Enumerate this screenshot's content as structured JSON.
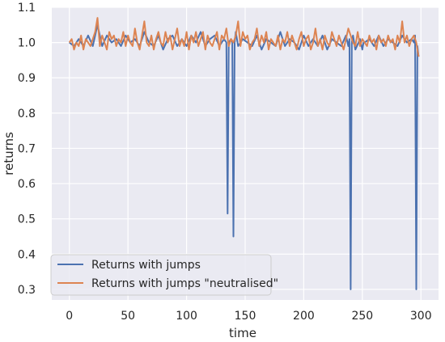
{
  "chart_data": {
    "type": "line",
    "title": "",
    "xlabel": "time",
    "ylabel": "returns",
    "xlim": [
      -15,
      315
    ],
    "ylim": [
      0.27,
      1.1
    ],
    "xticks": [
      0,
      50,
      100,
      150,
      200,
      250,
      300
    ],
    "yticks": [
      0.3,
      0.4,
      0.5,
      0.6,
      0.7,
      0.8,
      0.9,
      1.0,
      1.1
    ],
    "xtick_labels": [
      "0",
      "50",
      "100",
      "150",
      "200",
      "250",
      "300"
    ],
    "ytick_labels": [
      "0.3",
      "0.4",
      "0.5",
      "0.6",
      "0.7",
      "0.8",
      "0.9",
      "1.0",
      "1.1"
    ],
    "grid": true,
    "legend_position": "lower-left",
    "colors": {
      "background": "#eaeaf2",
      "grid": "#ffffff",
      "text": "#262626"
    },
    "series": [
      {
        "name": "Returns with jumps",
        "color": "#4c72b0",
        "x": [
          0,
          4,
          8,
          12,
          16,
          20,
          24,
          28,
          32,
          36,
          40,
          44,
          48,
          52,
          56,
          60,
          64,
          68,
          72,
          76,
          80,
          84,
          88,
          92,
          96,
          100,
          104,
          108,
          112,
          116,
          120,
          124,
          128,
          132,
          134,
          135,
          136,
          138,
          139,
          140,
          141,
          142,
          144,
          148,
          152,
          156,
          160,
          164,
          168,
          172,
          176,
          180,
          184,
          188,
          192,
          196,
          200,
          204,
          208,
          212,
          216,
          220,
          224,
          228,
          232,
          236,
          238,
          239,
          240,
          241,
          242,
          244,
          248,
          250,
          251,
          252,
          256,
          260,
          264,
          268,
          272,
          276,
          280,
          284,
          288,
          292,
          294,
          295,
          296,
          297,
          298
        ],
        "y": [
          1.0,
          0.99,
          1.01,
          0.99,
          1.02,
          0.99,
          1.05,
          0.99,
          1.02,
          1.0,
          1.01,
          0.99,
          1.02,
          1.0,
          1.01,
          0.99,
          1.03,
          1.0,
          0.99,
          1.02,
          0.98,
          1.01,
          1.02,
          0.99,
          1.01,
          0.99,
          1.02,
          1.0,
          1.03,
          0.99,
          1.01,
          1.02,
          0.99,
          1.01,
          1.0,
          0.515,
          1.0,
          1.01,
          1.0,
          0.45,
          1.0,
          1.03,
          0.99,
          1.01,
          1.0,
          0.99,
          1.02,
          0.98,
          1.01,
          1.0,
          0.99,
          1.03,
          0.99,
          1.01,
          1.0,
          0.98,
          1.02,
          0.99,
          1.01,
          0.99,
          1.02,
          0.98,
          1.01,
          1.0,
          0.99,
          1.02,
          0.99,
          1.01,
          0.3,
          1.0,
          1.02,
          0.98,
          1.01,
          0.98,
          1.0,
          1.0,
          1.01,
          0.99,
          1.02,
          0.99,
          1.01,
          1.0,
          0.99,
          1.02,
          1.0,
          1.01,
          1.0,
          1.02,
          0.3,
          0.99,
          0.96
        ]
      },
      {
        "name": "Returns with jumps \"neutralised\"",
        "color": "#dd8452",
        "x": [
          0,
          2,
          4,
          6,
          8,
          10,
          12,
          14,
          16,
          18,
          20,
          22,
          24,
          26,
          28,
          30,
          32,
          34,
          36,
          38,
          40,
          42,
          44,
          46,
          48,
          50,
          52,
          54,
          56,
          58,
          60,
          62,
          64,
          66,
          68,
          70,
          72,
          74,
          76,
          78,
          80,
          82,
          84,
          86,
          88,
          90,
          92,
          94,
          96,
          98,
          100,
          102,
          104,
          106,
          108,
          110,
          112,
          114,
          116,
          118,
          120,
          122,
          124,
          126,
          128,
          130,
          132,
          134,
          136,
          138,
          140,
          142,
          144,
          146,
          148,
          150,
          152,
          154,
          156,
          158,
          160,
          162,
          164,
          166,
          168,
          170,
          172,
          174,
          176,
          178,
          180,
          182,
          184,
          186,
          188,
          190,
          192,
          194,
          196,
          198,
          200,
          202,
          204,
          206,
          208,
          210,
          212,
          214,
          216,
          218,
          220,
          222,
          224,
          226,
          228,
          230,
          232,
          234,
          236,
          238,
          240,
          242,
          244,
          246,
          248,
          250,
          252,
          254,
          256,
          258,
          260,
          262,
          264,
          266,
          268,
          270,
          272,
          274,
          276,
          278,
          280,
          282,
          284,
          286,
          288,
          290,
          292,
          294,
          296,
          298
        ],
        "y": [
          1.0,
          1.01,
          0.98,
          1.0,
          0.99,
          1.02,
          0.98,
          1.01,
          1.0,
          0.99,
          1.01,
          1.03,
          1.07,
          0.99,
          1.02,
          1.0,
          0.98,
          1.03,
          1.01,
          1.02,
          0.99,
          1.01,
          1.0,
          1.03,
          0.99,
          1.02,
          1.0,
          0.99,
          1.04,
          1.0,
          0.98,
          1.02,
          1.06,
          1.0,
          0.99,
          1.02,
          0.98,
          1.01,
          1.03,
          1.0,
          0.99,
          1.03,
          1.0,
          1.02,
          0.98,
          1.01,
          1.04,
          0.99,
          1.01,
          0.99,
          1.03,
          0.98,
          1.02,
          1.0,
          1.03,
          0.99,
          1.01,
          1.03,
          0.98,
          1.02,
          1.0,
          0.99,
          1.01,
          1.03,
          0.98,
          1.02,
          1.01,
          1.04,
          0.99,
          1.01,
          1.0,
          1.02,
          1.06,
          0.99,
          1.03,
          1.01,
          1.02,
          0.98,
          1.0,
          1.01,
          1.04,
          0.99,
          1.02,
          1.0,
          1.03,
          0.98,
          1.01,
          1.0,
          0.99,
          1.02,
          0.98,
          1.01,
          1.0,
          1.03,
          0.99,
          1.02,
          1.0,
          0.98,
          1.01,
          1.03,
          0.99,
          1.01,
          1.02,
          0.98,
          1.0,
          1.04,
          0.99,
          1.01,
          0.98,
          1.02,
          1.0,
          0.99,
          1.03,
          1.01,
          0.99,
          1.02,
          1.0,
          0.98,
          1.01,
          1.04,
          1.02,
          1.0,
          0.99,
          1.03,
          0.99,
          1.01,
          1.0,
          0.99,
          1.02,
          1.0,
          1.01,
          0.98,
          1.02,
          1.0,
          1.01,
          0.99,
          1.02,
          1.0,
          1.01,
          0.98,
          1.02,
          1.0,
          1.06,
          1.0,
          1.02,
          0.99,
          1.01,
          1.02,
          1.0,
          0.96
        ]
      }
    ]
  }
}
